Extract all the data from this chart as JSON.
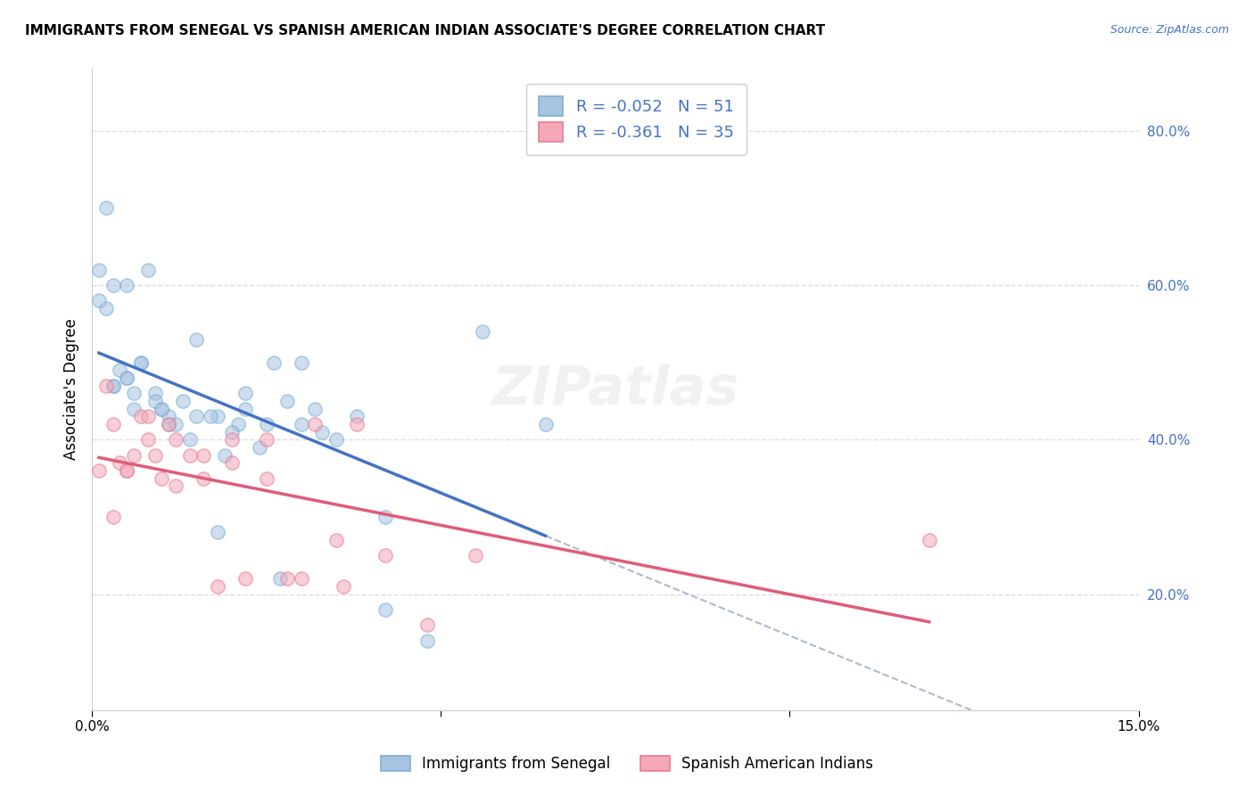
{
  "title": "IMMIGRANTS FROM SENEGAL VS SPANISH AMERICAN INDIAN ASSOCIATE'S DEGREE CORRELATION CHART",
  "source": "Source: ZipAtlas.com",
  "xlabel": "",
  "ylabel": "Associate's Degree",
  "xlim": [
    0.0,
    0.15
  ],
  "ylim": [
    0.05,
    0.88
  ],
  "yticks_right": [
    0.2,
    0.4,
    0.6,
    0.8
  ],
  "yticklabels_right": [
    "20.0%",
    "40.0%",
    "60.0%",
    "80.0%"
  ],
  "grid_color": "#dddddd",
  "background_color": "#ffffff",
  "series1_color": "#a8c4e0",
  "series1_edge": "#7aafd4",
  "series2_color": "#f4a8b8",
  "series2_edge": "#e87a96",
  "series1_label": "Immigrants from Senegal",
  "series2_label": "Spanish American Indians",
  "series1_R": "-0.052",
  "series1_N": "51",
  "series2_R": "-0.361",
  "series2_N": "35",
  "trend1_color": "#4472c4",
  "trend2_color": "#e05c78",
  "dash_line_color": "#b0b8d0",
  "legend_R_color": "#4472c4",
  "series1_x": [
    0.005,
    0.003,
    0.002,
    0.008,
    0.001,
    0.004,
    0.003,
    0.006,
    0.007,
    0.009,
    0.011,
    0.013,
    0.015,
    0.018,
    0.022,
    0.025,
    0.028,
    0.032,
    0.002,
    0.005,
    0.007,
    0.01,
    0.012,
    0.014,
    0.017,
    0.019,
    0.021,
    0.024,
    0.027,
    0.03,
    0.033,
    0.038,
    0.042,
    0.048,
    0.056,
    0.065,
    0.001,
    0.003,
    0.006,
    0.009,
    0.011,
    0.015,
    0.02,
    0.026,
    0.035,
    0.042,
    0.005,
    0.01,
    0.018,
    0.03,
    0.022
  ],
  "series1_y": [
    0.48,
    0.6,
    0.57,
    0.62,
    0.58,
    0.49,
    0.47,
    0.44,
    0.5,
    0.46,
    0.43,
    0.45,
    0.53,
    0.43,
    0.46,
    0.42,
    0.45,
    0.44,
    0.7,
    0.6,
    0.5,
    0.44,
    0.42,
    0.4,
    0.43,
    0.38,
    0.42,
    0.39,
    0.22,
    0.5,
    0.41,
    0.43,
    0.18,
    0.14,
    0.54,
    0.42,
    0.62,
    0.47,
    0.46,
    0.45,
    0.42,
    0.43,
    0.41,
    0.5,
    0.4,
    0.3,
    0.48,
    0.44,
    0.28,
    0.42,
    0.44
  ],
  "series2_x": [
    0.002,
    0.003,
    0.004,
    0.005,
    0.006,
    0.007,
    0.008,
    0.009,
    0.01,
    0.011,
    0.012,
    0.014,
    0.016,
    0.018,
    0.02,
    0.022,
    0.025,
    0.028,
    0.032,
    0.036,
    0.001,
    0.003,
    0.005,
    0.008,
    0.012,
    0.016,
    0.02,
    0.025,
    0.03,
    0.035,
    0.038,
    0.042,
    0.048,
    0.055,
    0.12
  ],
  "series2_y": [
    0.47,
    0.42,
    0.37,
    0.36,
    0.38,
    0.43,
    0.4,
    0.38,
    0.35,
    0.42,
    0.34,
    0.38,
    0.35,
    0.21,
    0.37,
    0.22,
    0.4,
    0.22,
    0.42,
    0.21,
    0.36,
    0.3,
    0.36,
    0.43,
    0.4,
    0.38,
    0.4,
    0.35,
    0.22,
    0.27,
    0.42,
    0.25,
    0.16,
    0.25,
    0.27
  ],
  "marker_size": 120,
  "alpha": 0.55
}
